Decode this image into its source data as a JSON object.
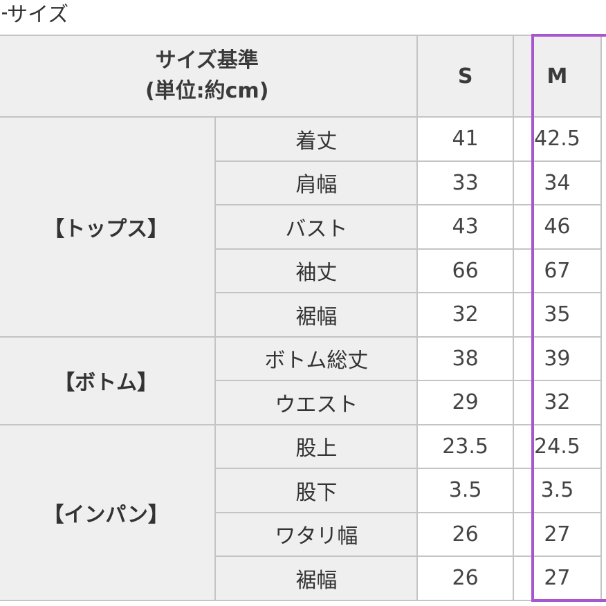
{
  "title": "サイズ",
  "table": {
    "header": {
      "label": "サイズ基準",
      "unit": "(単位:約cm)",
      "sizes": [
        "S",
        "M"
      ]
    },
    "highlight_color": "#a855d0",
    "groups": [
      {
        "name": "【トップス】",
        "rows": [
          {
            "label": "着丈",
            "values": [
              "41",
              "42.5"
            ]
          },
          {
            "label": "肩幅",
            "values": [
              "33",
              "34"
            ]
          },
          {
            "label": "バスト",
            "values": [
              "43",
              "46"
            ]
          },
          {
            "label": "袖丈",
            "values": [
              "66",
              "67"
            ]
          },
          {
            "label": "裾幅",
            "values": [
              "32",
              "35"
            ]
          }
        ]
      },
      {
        "name": "【ボトム】",
        "rows": [
          {
            "label": "ボトム総丈",
            "values": [
              "38",
              "39"
            ]
          },
          {
            "label": "ウエスト",
            "values": [
              "29",
              "32"
            ]
          }
        ]
      },
      {
        "name": "【インパン】",
        "rows": [
          {
            "label": "股上",
            "values": [
              "23.5",
              "24.5"
            ]
          },
          {
            "label": "股下",
            "values": [
              "3.5",
              "3.5"
            ]
          },
          {
            "label": "ワタリ幅",
            "values": [
              "26",
              "27"
            ]
          },
          {
            "label": "裾幅",
            "values": [
              "26",
              "27"
            ]
          }
        ]
      }
    ]
  }
}
